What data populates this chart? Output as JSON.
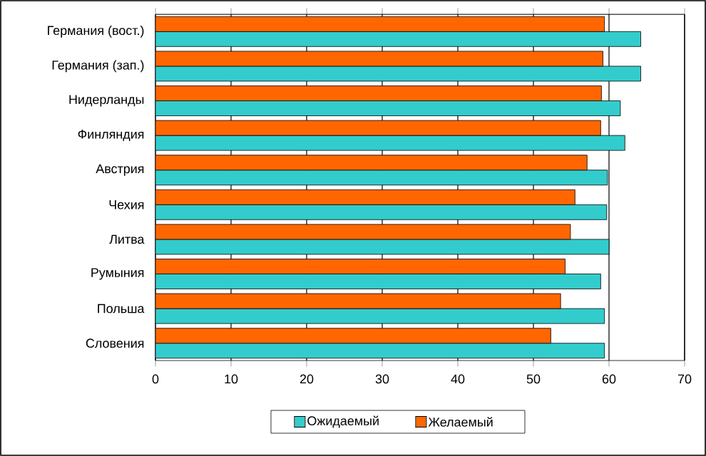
{
  "chart_data": {
    "type": "bar",
    "orientation": "horizontal",
    "categories": [
      "Германия (вост.)",
      "Германия (зап.)",
      "Нидерланды",
      "Финляндия",
      "Австрия",
      "Чехия",
      "Литва",
      "Румыния",
      "Польша",
      "Словения"
    ],
    "series": [
      {
        "name": "Ожидаемый",
        "color": "#33cccc",
        "values": [
          64.2,
          64.2,
          61.5,
          62.1,
          59.8,
          59.7,
          60.0,
          58.9,
          59.4,
          59.4
        ]
      },
      {
        "name": "Желаемый",
        "color": "#ff6600",
        "values": [
          59.4,
          59.2,
          59.0,
          58.9,
          57.1,
          55.5,
          54.9,
          54.2,
          53.6,
          52.3
        ]
      }
    ],
    "xlim": [
      0,
      70
    ],
    "xticks": [
      0,
      10,
      20,
      30,
      40,
      50,
      60,
      70
    ],
    "grid": "x",
    "legend": "bottom"
  }
}
